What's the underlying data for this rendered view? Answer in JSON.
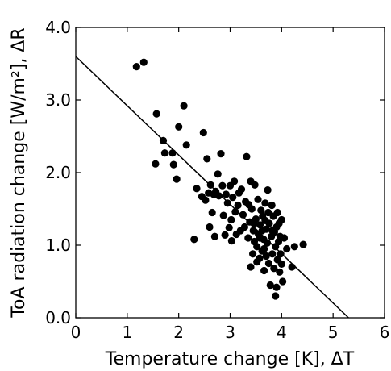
{
  "chart_data": {
    "type": "scatter",
    "title": "",
    "xlabel": "Temperature change [K], ΔT",
    "ylabel": "ToA radiation change [W/m²], ΔR",
    "xlim": [
      0,
      6
    ],
    "ylim": [
      0.0,
      4.0
    ],
    "x_ticks": [
      0,
      1,
      2,
      3,
      4,
      5,
      6
    ],
    "x_tick_labels": [
      "0",
      "1",
      "2",
      "3",
      "4",
      "5",
      "6"
    ],
    "y_ticks": [
      0.0,
      1.0,
      2.0,
      3.0,
      4.0
    ],
    "y_tick_labels": [
      "0.0",
      "1.0",
      "2.0",
      "3.0",
      "4.0"
    ],
    "grid": false,
    "point_color": "#000000",
    "fit_line": {
      "x": [
        0,
        5.3
      ],
      "y": [
        3.6,
        0.0
      ],
      "color": "#000000"
    },
    "points": [
      [
        1.18,
        3.46
      ],
      [
        1.32,
        3.52
      ],
      [
        1.55,
        2.12
      ],
      [
        1.57,
        2.81
      ],
      [
        1.7,
        2.44
      ],
      [
        1.73,
        2.27
      ],
      [
        1.88,
        2.27
      ],
      [
        1.9,
        2.11
      ],
      [
        1.96,
        1.91
      ],
      [
        2.0,
        2.63
      ],
      [
        2.1,
        2.92
      ],
      [
        2.15,
        2.38
      ],
      [
        2.3,
        1.08
      ],
      [
        2.35,
        1.78
      ],
      [
        2.45,
        1.67
      ],
      [
        2.48,
        2.55
      ],
      [
        2.52,
        1.62
      ],
      [
        2.55,
        2.19
      ],
      [
        2.58,
        1.72
      ],
      [
        2.6,
        1.25
      ],
      [
        2.62,
        1.83
      ],
      [
        2.65,
        1.45
      ],
      [
        2.68,
        1.7
      ],
      [
        2.7,
        1.12
      ],
      [
        2.72,
        1.74
      ],
      [
        2.76,
        1.98
      ],
      [
        2.78,
        1.68
      ],
      [
        2.82,
        2.26
      ],
      [
        2.85,
        1.82
      ],
      [
        2.87,
        1.41
      ],
      [
        2.9,
        1.14
      ],
      [
        2.92,
        1.7
      ],
      [
        2.95,
        1.58
      ],
      [
        2.98,
        1.24
      ],
      [
        3.0,
        1.82
      ],
      [
        3.02,
        1.35
      ],
      [
        3.03,
        1.06
      ],
      [
        3.05,
        1.66
      ],
      [
        3.08,
        1.88
      ],
      [
        3.1,
        1.46
      ],
      [
        3.12,
        1.15
      ],
      [
        3.15,
        1.55
      ],
      [
        3.17,
        1.72
      ],
      [
        3.2,
        1.2
      ],
      [
        3.22,
        1.77
      ],
      [
        3.25,
        1.42
      ],
      [
        3.28,
        1.25
      ],
      [
        3.3,
        1.6
      ],
      [
        3.32,
        2.22
      ],
      [
        3.35,
        1.1
      ],
      [
        3.38,
        1.32
      ],
      [
        3.4,
        1.88
      ],
      [
        3.4,
        0.7
      ],
      [
        3.42,
        1.5
      ],
      [
        3.45,
        1.2
      ],
      [
        3.47,
        1.05
      ],
      [
        3.48,
        1.83
      ],
      [
        3.5,
        1.36
      ],
      [
        3.52,
        0.98
      ],
      [
        3.54,
        1.63
      ],
      [
        3.55,
        1.15
      ],
      [
        3.57,
        0.82
      ],
      [
        3.58,
        1.28
      ],
      [
        3.6,
        1.48
      ],
      [
        3.62,
        0.92
      ],
      [
        3.63,
        1.4
      ],
      [
        3.65,
        1.08
      ],
      [
        3.66,
        0.65
      ],
      [
        3.68,
        1.58
      ],
      [
        3.7,
        1.22
      ],
      [
        3.7,
        0.85
      ],
      [
        3.72,
        1.03
      ],
      [
        3.73,
        1.76
      ],
      [
        3.75,
        0.75
      ],
      [
        3.76,
        1.3
      ],
      [
        3.78,
        0.45
      ],
      [
        3.8,
        1.12
      ],
      [
        3.81,
        1.55
      ],
      [
        3.82,
        0.88
      ],
      [
        3.84,
        1.4
      ],
      [
        3.85,
        0.68
      ],
      [
        3.86,
        1.18
      ],
      [
        3.88,
        0.98
      ],
      [
        3.88,
        0.3
      ],
      [
        3.9,
        1.25
      ],
      [
        3.9,
        0.42
      ],
      [
        3.92,
        1.45
      ],
      [
        3.92,
        0.8
      ],
      [
        3.94,
        1.05
      ],
      [
        3.95,
        1.3
      ],
      [
        3.96,
        0.63
      ],
      [
        3.97,
        1.12
      ],
      [
        3.98,
        0.88
      ],
      [
        4.0,
        1.35
      ],
      [
        4.0,
        0.74
      ],
      [
        4.02,
        0.5
      ],
      [
        4.05,
        1.1
      ],
      [
        4.1,
        0.95
      ],
      [
        4.2,
        0.7
      ],
      [
        4.25,
        0.98
      ],
      [
        4.42,
        1.01
      ],
      [
        3.58,
        1.1
      ],
      [
        3.62,
        1.2
      ],
      [
        3.46,
        1.3
      ],
      [
        3.66,
        0.95
      ],
      [
        3.52,
        0.77
      ],
      [
        3.74,
        1.45
      ],
      [
        3.82,
        1.2
      ],
      [
        3.36,
        1.56
      ],
      [
        3.44,
        0.88
      ],
      [
        3.68,
        1.34
      ]
    ]
  }
}
